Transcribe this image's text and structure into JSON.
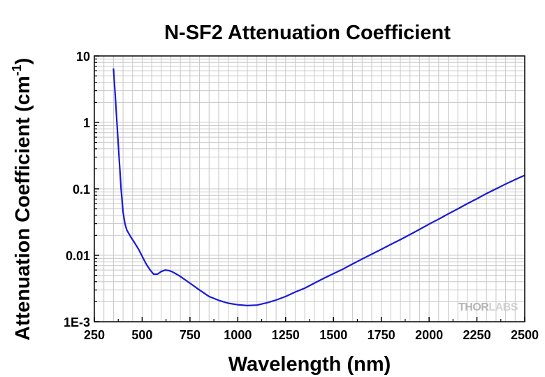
{
  "chart_data": {
    "type": "line",
    "title": "N-SF2 Attenuation Coefficient",
    "xlabel": "Wavelength (nm)",
    "ylabel": "Attenuation Coefficient (cm",
    "ylabel_superscript": "-1",
    "ylabel_close": ")",
    "xlim": [
      250,
      2500
    ],
    "ylim": [
      0.001,
      10
    ],
    "yscale": "log",
    "grid": true,
    "x_ticks": [
      250,
      500,
      750,
      1000,
      1250,
      1500,
      1750,
      2000,
      2250,
      2500
    ],
    "x_tick_labels": [
      "250",
      "500",
      "750",
      "1000",
      "1250",
      "1500",
      "1750",
      "2000",
      "2250",
      "2500"
    ],
    "y_ticks": [
      0.001,
      0.01,
      0.1,
      1,
      10
    ],
    "y_tick_labels": [
      "1E-3",
      "0.01",
      "0.1",
      "1",
      "10"
    ],
    "line_color": "#1a1ad6",
    "series": [
      {
        "x": [
          350,
          360,
          370,
          380,
          390,
          400,
          410,
          420,
          440,
          460,
          480,
          500,
          520,
          540,
          560,
          580,
          600,
          620,
          640,
          660,
          680,
          700,
          750,
          800,
          850,
          900,
          950,
          1000,
          1050,
          1100,
          1150,
          1200,
          1250,
          1300,
          1350,
          1400,
          1450,
          1500,
          1550,
          1600,
          1650,
          1700,
          1750,
          1800,
          1850,
          1900,
          1950,
          2000,
          2050,
          2100,
          2150,
          2200,
          2250,
          2300,
          2350,
          2400,
          2450,
          2500
        ],
        "y": [
          6.5,
          2.4,
          0.8,
          0.28,
          0.1,
          0.045,
          0.03,
          0.024,
          0.019,
          0.0155,
          0.0125,
          0.0097,
          0.0075,
          0.0061,
          0.0052,
          0.0052,
          0.0057,
          0.006,
          0.0059,
          0.0056,
          0.0052,
          0.0048,
          0.0038,
          0.003,
          0.0024,
          0.0021,
          0.0019,
          0.0018,
          0.00175,
          0.00178,
          0.00192,
          0.00212,
          0.0024,
          0.0028,
          0.0032,
          0.0038,
          0.0045,
          0.0053,
          0.0062,
          0.0074,
          0.0088,
          0.0104,
          0.0123,
          0.0146,
          0.0172,
          0.0205,
          0.0245,
          0.0295,
          0.035,
          0.042,
          0.05,
          0.06,
          0.071,
          0.085,
          0.1,
          0.118,
          0.138,
          0.16
        ]
      }
    ]
  },
  "watermark": {
    "part1": "THOR",
    "part2": "LABS"
  }
}
